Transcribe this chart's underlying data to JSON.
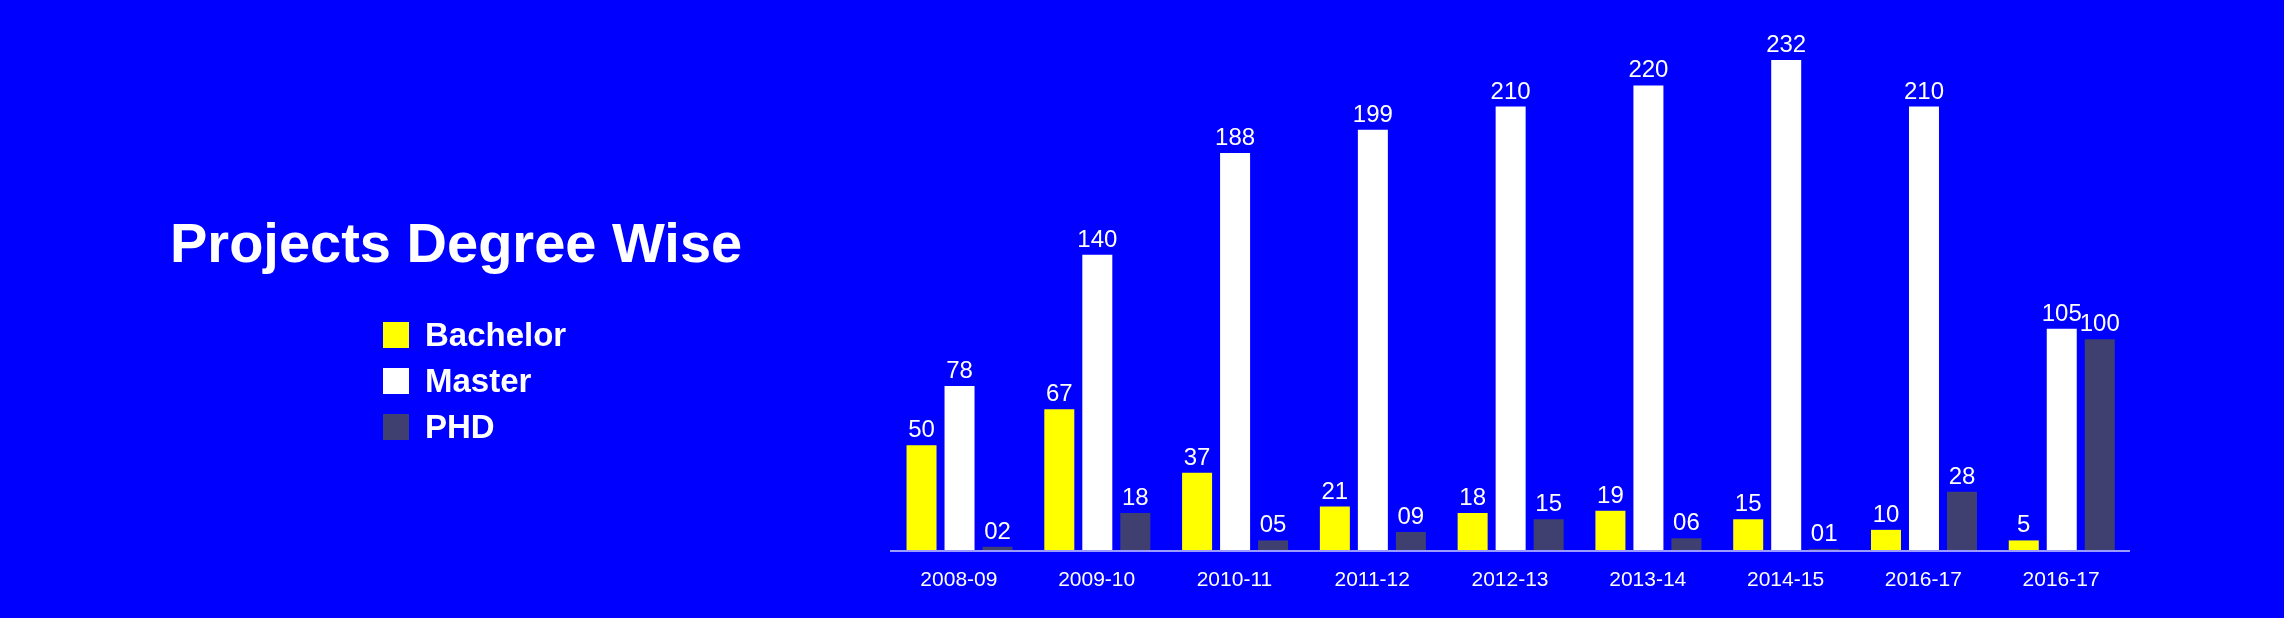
{
  "chart_data": {
    "type": "bar",
    "title": "Projects Degree Wise",
    "categories": [
      "2008-09",
      "2009-10",
      "2010-11",
      "2011-12",
      "2012-13",
      "2013-14",
      "2014-15",
      "2016-17",
      "2016-17"
    ],
    "series": [
      {
        "name": "Bachelor",
        "color": "#ffff00",
        "values": [
          50,
          67,
          37,
          21,
          18,
          19,
          15,
          10,
          5
        ],
        "value_labels": [
          "50",
          "67",
          "37",
          "21",
          "18",
          "19",
          "15",
          "10",
          "5"
        ]
      },
      {
        "name": "Master",
        "color": "#ffffff",
        "values": [
          78,
          140,
          188,
          199,
          210,
          220,
          232,
          210,
          105
        ],
        "value_labels": [
          "78",
          "140",
          "188",
          "199",
          "210",
          "220",
          "232",
          "210",
          "105"
        ]
      },
      {
        "name": "PHD",
        "color": "#404070",
        "values": [
          2,
          18,
          5,
          9,
          15,
          6,
          1,
          28,
          100
        ],
        "value_labels": [
          "02",
          "18",
          "05",
          "09",
          "15",
          "06",
          "01",
          "28",
          "100"
        ]
      }
    ],
    "legend": "left",
    "grid": false
  }
}
